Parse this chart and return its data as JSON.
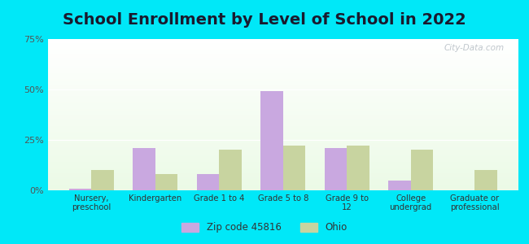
{
  "title": "School Enrollment by Level of School in 2022",
  "categories": [
    "Nursery,\npreschool",
    "Kindergarten",
    "Grade 1 to 4",
    "Grade 5 to 8",
    "Grade 9 to\n12",
    "College\nundergrad",
    "Graduate or\nprofessional"
  ],
  "zip_values": [
    1.0,
    21.0,
    8.0,
    49.0,
    21.0,
    5.0,
    0.0
  ],
  "ohio_values": [
    10.0,
    8.0,
    20.0,
    22.0,
    22.0,
    20.0,
    10.0
  ],
  "zip_color": "#c9a8e0",
  "ohio_color": "#c8d4a0",
  "background_outer": "#00e8f8",
  "ylim": [
    0,
    75
  ],
  "yticks": [
    0,
    25,
    50,
    75
  ],
  "ytick_labels": [
    "0%",
    "25%",
    "50%",
    "75%"
  ],
  "bar_width": 0.35,
  "legend_labels": [
    "Zip code 45816",
    "Ohio"
  ],
  "title_fontsize": 14,
  "watermark": "City-Data.com"
}
